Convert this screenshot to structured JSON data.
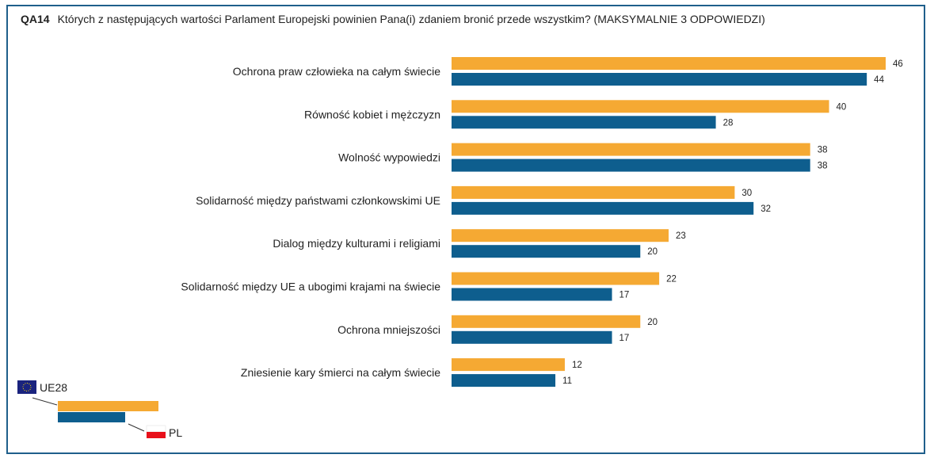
{
  "chart_data": {
    "type": "bar",
    "orientation": "horizontal",
    "title_code": "QA14",
    "title": "Których z następujących wartości Parlament Europejski powinien Pana(i) zdaniem bronić przede wszystkim? (MAKSYMALNIE 3 ODPOWIEDZI)",
    "categories": [
      "Ochrona praw człowieka na całym świecie",
      "Równość kobiet i mężczyzn",
      "Wolność wypowiedzi",
      "Solidarność między państwami członkowskimi UE",
      "Dialog między kulturami i religiami",
      "Solidarność między UE a ubogimi krajami na świecie",
      "Ochrona mniejszości",
      "Zniesienie kary śmierci na całym świecie"
    ],
    "series": [
      {
        "name": "UE28",
        "color": "#f5a933",
        "values": [
          46,
          40,
          38,
          30,
          23,
          22,
          20,
          12
        ]
      },
      {
        "name": "PL",
        "color": "#0e5e8e",
        "values": [
          44,
          28,
          38,
          32,
          20,
          17,
          17,
          11
        ]
      }
    ],
    "xlim": [
      0,
      50
    ],
    "grid": false,
    "legend": "bottom-left",
    "frame_color": "#1f5f8b"
  }
}
